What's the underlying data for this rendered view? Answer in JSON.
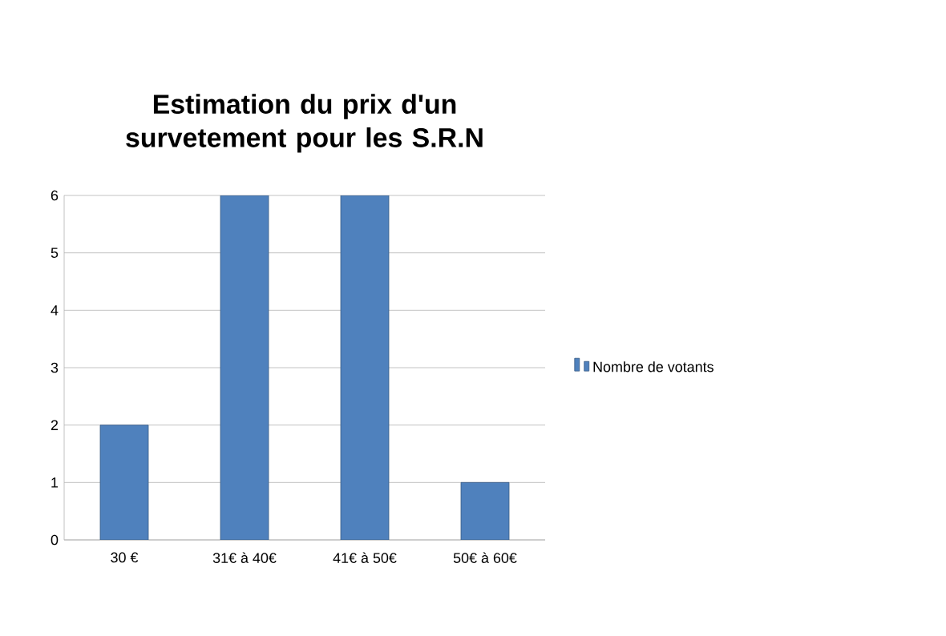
{
  "chart_data": {
    "type": "bar",
    "title": "Estimation du prix d'un survetement pour les S.R.N",
    "categories": [
      "30 €",
      "31€ à 40€",
      "41€ à 50€",
      "50€ à 60€"
    ],
    "series": [
      {
        "name": "Nombre de votants",
        "color": "#4f81bd",
        "values": [
          2,
          6,
          6,
          1
        ]
      }
    ],
    "ylim": [
      0,
      6
    ],
    "yticks": [
      0,
      1,
      2,
      3,
      4,
      5,
      6
    ],
    "grid": "y",
    "legend": "right"
  }
}
